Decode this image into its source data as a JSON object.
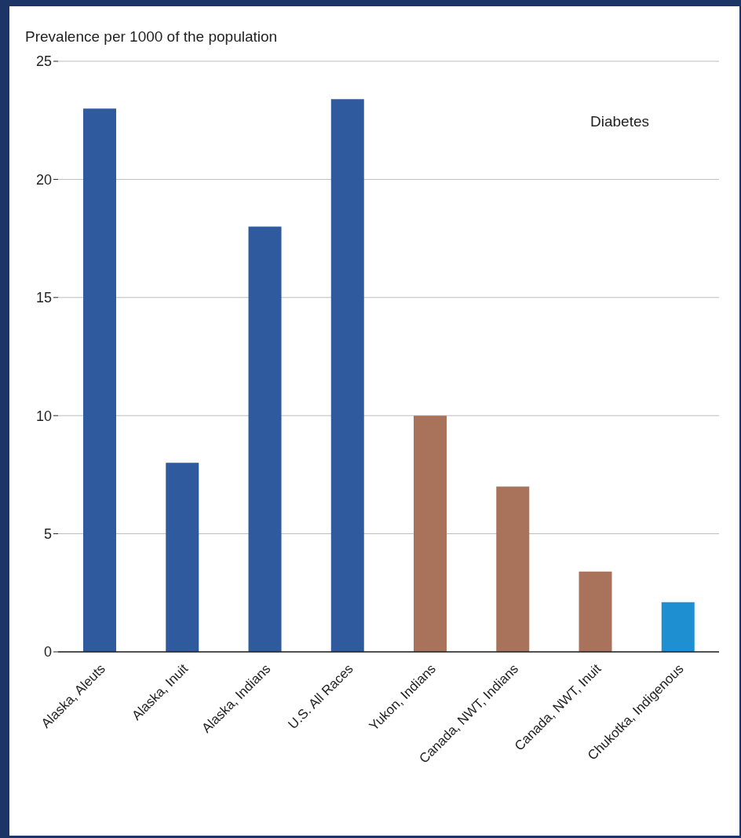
{
  "chart_data": {
    "type": "bar",
    "ylabel": "Prevalence per 1000 of the population",
    "categories": [
      "Alaska, Aleuts",
      "Alaska, Inuit",
      "Alaska, Indians",
      "U.S. All Races",
      "Yukon, Indians",
      "Canada, NWT, Indians",
      "Canada, NWT, Inuit",
      "Chukotka, Indigenous"
    ],
    "values": [
      23,
      8,
      18,
      23.4,
      10,
      7,
      3.4,
      2.1
    ],
    "colors": [
      "#2f5b9e",
      "#2f5b9e",
      "#2f5b9e",
      "#2f5b9e",
      "#a8735a",
      "#a8735a",
      "#a8735a",
      "#1e8fd0"
    ],
    "ylim": [
      0,
      25
    ],
    "yticks": [
      0,
      5,
      10,
      15,
      20,
      25
    ],
    "grid": "y",
    "annotations": [
      "Diabetes"
    ]
  }
}
